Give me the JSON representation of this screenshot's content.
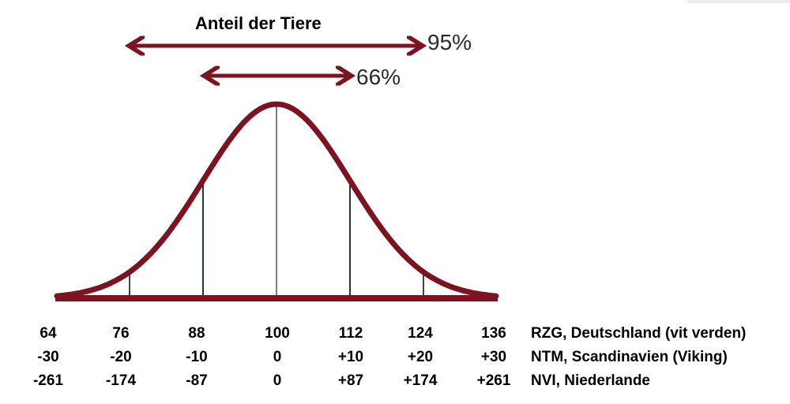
{
  "title": "Anteil der Tiere",
  "ranges": [
    {
      "label": "95%",
      "from_sd": -2,
      "to_sd": 2
    },
    {
      "label": "66%",
      "from_sd": -1,
      "to_sd": 1
    }
  ],
  "colors": {
    "curve": "#7b1420",
    "line": "#111111",
    "text": "#000000"
  },
  "scales": [
    {
      "label": "RZG, Deutschland (vit verden)",
      "values": [
        "64",
        "76",
        "88",
        "100",
        "112",
        "124",
        "136"
      ]
    },
    {
      "label": "NTM, Scandinavien (Viking)",
      "values": [
        "-30",
        "-20",
        "-10",
        "0",
        "+10",
        "+20",
        "+30"
      ]
    },
    {
      "label": "NVI, Niederlande",
      "values": [
        "-261",
        "-174",
        "-87",
        "0",
        "+87",
        "+174",
        "+261"
      ]
    }
  ]
}
